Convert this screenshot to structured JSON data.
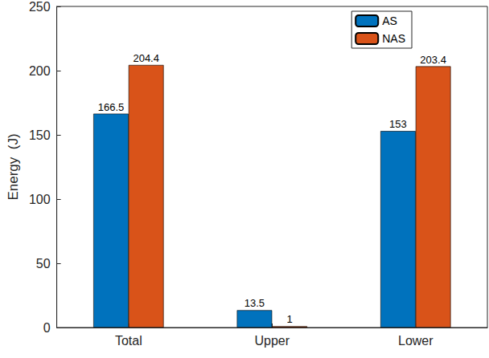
{
  "chart_data": {
    "type": "bar",
    "categories": [
      "Total",
      "Upper",
      "Lower"
    ],
    "series": [
      {
        "name": "AS",
        "color": "#0072bd",
        "values": [
          166.5,
          13.5,
          153
        ]
      },
      {
        "name": "NAS",
        "color": "#d95319",
        "values": [
          204.4,
          1,
          203.4
        ]
      }
    ],
    "ylabel": "Energy  (J)",
    "ylim": [
      0,
      250
    ],
    "yticks": [
      0,
      50,
      100,
      150,
      200,
      250
    ],
    "grid": false,
    "legend": "upper right",
    "data_labels": true
  }
}
